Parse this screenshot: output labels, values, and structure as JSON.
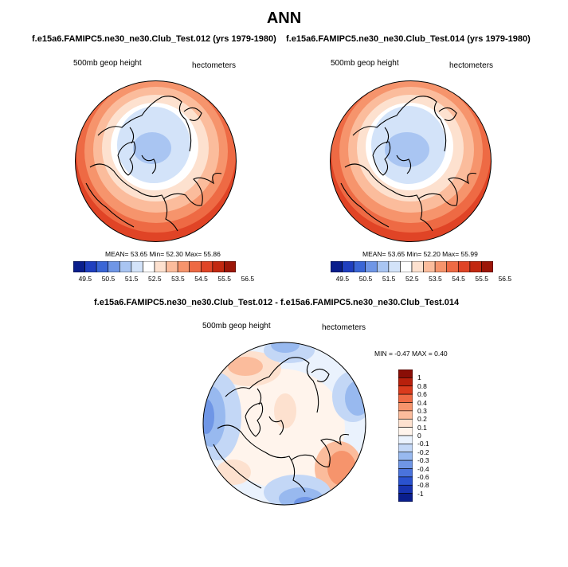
{
  "title": "ANN",
  "panels": [
    {
      "title": "f.e15a6.FAMIPC5.ne30_ne30.Club_Test.012 (yrs 1979-1980)",
      "left_label": "500mb geop height",
      "right_label": "hectometers",
      "stats": "MEAN=  53.65  Min=  52.30  Max=  55.86"
    },
    {
      "title": "f.e15a6.FAMIPC5.ne30_ne30.Club_Test.014 (yrs 1979-1980)",
      "left_label": "500mb geop height",
      "right_label": "hectometers",
      "stats": "MEAN=  53.65  Min=  52.20  Max=  55.99"
    },
    {
      "title": "f.e15a6.FAMIPC5.ne30_ne30.Club_Test.012 - f.e15a6.FAMIPC5.ne30_ne30.Club_Test.014",
      "left_label": "500mb geop height",
      "right_label": "hectometers",
      "stats": "MIN =  -0.47 MAX =   0.40"
    }
  ],
  "colorbar_field": {
    "labels": [
      "49.5",
      "50.5",
      "51.5",
      "52.5",
      "53.5",
      "54.5",
      "55.5",
      "56.5"
    ],
    "colors": [
      "#0a1e8c",
      "#1f3fbf",
      "#3a66d6",
      "#6f96e6",
      "#a9c5f2",
      "#d3e3f9",
      "#ffffff",
      "#fde1cf",
      "#fbbc9c",
      "#f6946c",
      "#ee6a44",
      "#e04426",
      "#c22810",
      "#9c1608"
    ]
  },
  "colorbar_diff": {
    "labels": [
      "1",
      "0.8",
      "0.6",
      "0.4",
      "0.3",
      "0.2",
      "0.1",
      "0",
      "-0.1",
      "-0.2",
      "-0.3",
      "-0.4",
      "-0.6",
      "-0.8",
      "-1"
    ],
    "colors": [
      "#8a0e06",
      "#b8200c",
      "#da3b1d",
      "#ee6a44",
      "#f6946c",
      "#fbbc9c",
      "#fde1cf",
      "#fff4ec",
      "#eaf2fd",
      "#c3d7f6",
      "#98b9ef",
      "#6f96e6",
      "#4a73dc",
      "#2a52cf",
      "#1733b0",
      "#0a1e8c"
    ]
  }
}
